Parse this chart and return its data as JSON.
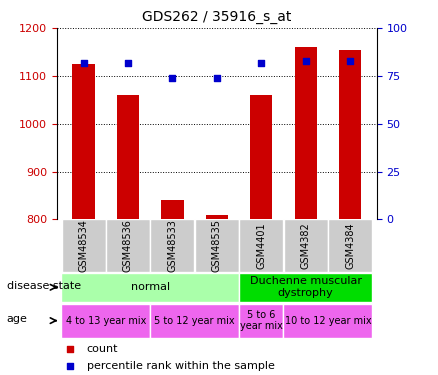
{
  "title": "GDS262 / 35916_s_at",
  "samples": [
    "GSM48534",
    "GSM48536",
    "GSM48533",
    "GSM48535",
    "GSM4401",
    "GSM4382",
    "GSM4384"
  ],
  "count_values": [
    1125,
    1060,
    840,
    810,
    1060,
    1160,
    1155
  ],
  "percentile_values": [
    82,
    82,
    74,
    74,
    82,
    83,
    83
  ],
  "ylim_left": [
    800,
    1200
  ],
  "ylim_right": [
    0,
    100
  ],
  "yticks_left": [
    800,
    900,
    1000,
    1100,
    1200
  ],
  "yticks_right": [
    0,
    25,
    50,
    75,
    100
  ],
  "bar_color": "#cc0000",
  "dot_color": "#0000cc",
  "disease_state_normal_color": "#aaffaa",
  "disease_state_dmd_color": "#00dd00",
  "age_color": "#ee66ee",
  "label_box_color": "#cccccc",
  "disease_groups": [
    {
      "label": "normal",
      "start": 0,
      "end": 4
    },
    {
      "label": "Duchenne muscular\ndystrophy",
      "start": 4,
      "end": 7
    }
  ],
  "age_groups": [
    {
      "label": "4 to 13 year mix",
      "start": 0,
      "end": 2
    },
    {
      "label": "5 to 12 year mix",
      "start": 2,
      "end": 4
    },
    {
      "label": "5 to 6\nyear mix",
      "start": 4,
      "end": 5
    },
    {
      "label": "10 to 12 year mix",
      "start": 5,
      "end": 7
    }
  ],
  "legend_count_label": "count",
  "legend_pct_label": "percentile rank within the sample",
  "bar_width": 0.5
}
